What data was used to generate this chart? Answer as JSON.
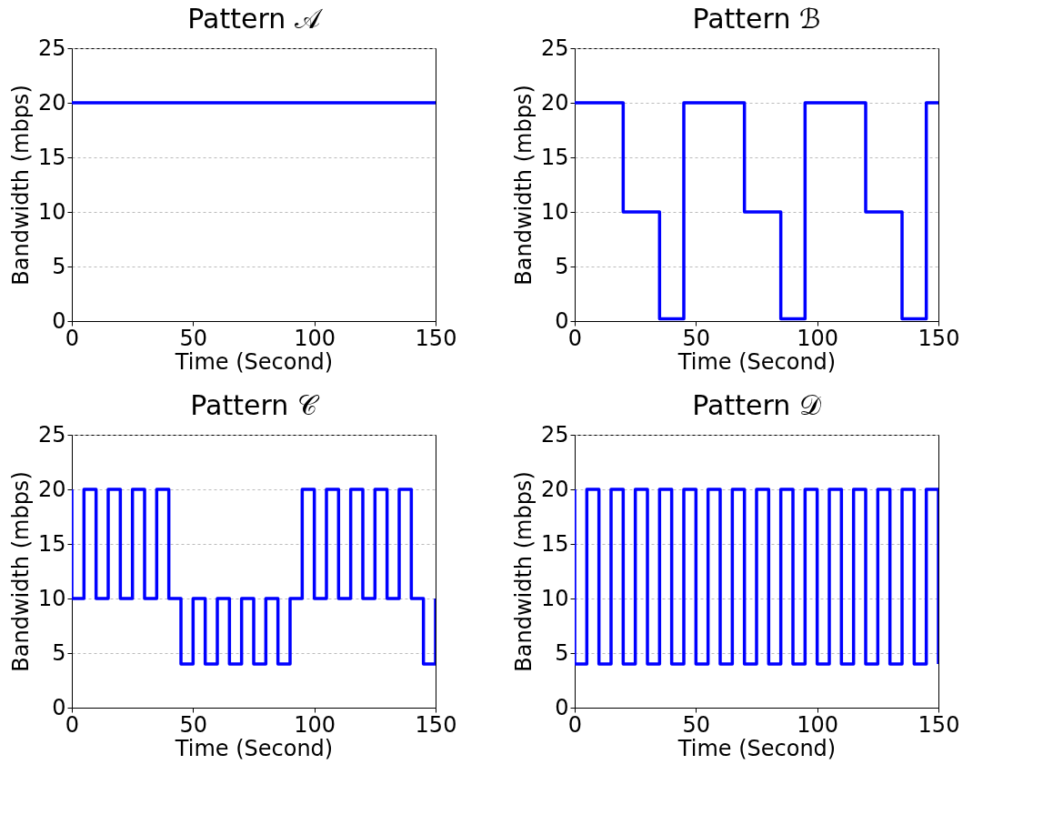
{
  "chart_data": [
    {
      "type": "step",
      "title": "Pattern 𝒜",
      "xlabel": "Time (Second)",
      "ylabel": "Bandwidth (mbps)",
      "xlim": [
        0,
        150
      ],
      "ylim": [
        0,
        25
      ],
      "xticks": [
        0,
        50,
        100,
        150
      ],
      "yticks": [
        0,
        5,
        10,
        15,
        20,
        25
      ],
      "grid": "y",
      "series": [
        {
          "color": "#0000ff",
          "x": [
            0,
            150
          ],
          "values": [
            20,
            20
          ]
        }
      ]
    },
    {
      "type": "step",
      "title": "Pattern ℬ",
      "xlabel": "Time (Second)",
      "ylabel": "Bandwidth (mbps)",
      "xlim": [
        0,
        150
      ],
      "ylim": [
        0,
        25
      ],
      "xticks": [
        0,
        50,
        100,
        150
      ],
      "yticks": [
        0,
        5,
        10,
        15,
        20,
        25
      ],
      "grid": "y",
      "series": [
        {
          "color": "#0000ff",
          "x": [
            0,
            20,
            35,
            45,
            70,
            85,
            95,
            120,
            135,
            145,
            150
          ],
          "values": [
            20,
            20,
            10,
            0.2,
            20,
            10,
            0.2,
            20,
            10,
            0.2,
            20
          ]
        }
      ]
    },
    {
      "type": "step",
      "title": "Pattern 𝒞",
      "xlabel": "Time (Second)",
      "ylabel": "Bandwidth (mbps)",
      "xlim": [
        0,
        150
      ],
      "ylim": [
        0,
        25
      ],
      "xticks": [
        0,
        50,
        100,
        150
      ],
      "yticks": [
        0,
        5,
        10,
        15,
        20,
        25
      ],
      "grid": "y",
      "series": [
        {
          "color": "#0000ff",
          "x": [
            0,
            5,
            10,
            15,
            20,
            25,
            30,
            35,
            40,
            45,
            50,
            55,
            60,
            65,
            70,
            75,
            80,
            85,
            90,
            95,
            100,
            105,
            110,
            115,
            120,
            125,
            130,
            135,
            140,
            145,
            150,
            150
          ],
          "values": [
            20,
            10,
            20,
            10,
            20,
            10,
            20,
            10,
            20,
            10,
            4,
            10,
            4,
            10,
            4,
            10,
            4,
            10,
            4,
            10,
            20,
            10,
            20,
            10,
            20,
            10,
            20,
            10,
            20,
            10,
            4,
            10
          ]
        }
      ]
    },
    {
      "type": "step",
      "title": "Pattern 𝒟",
      "xlabel": "Time (Second)",
      "ylabel": "Bandwidth (mbps)",
      "xlim": [
        0,
        150
      ],
      "ylim": [
        0,
        25
      ],
      "xticks": [
        0,
        50,
        100,
        150
      ],
      "yticks": [
        0,
        5,
        10,
        15,
        20,
        25
      ],
      "grid": "y",
      "series": [
        {
          "color": "#0000ff",
          "x": [
            0,
            5,
            10,
            15,
            20,
            25,
            30,
            35,
            40,
            45,
            50,
            55,
            60,
            65,
            70,
            75,
            80,
            85,
            90,
            95,
            100,
            105,
            110,
            115,
            120,
            125,
            130,
            135,
            140,
            145,
            150,
            150
          ],
          "values": [
            20,
            4,
            20,
            4,
            20,
            4,
            20,
            4,
            20,
            4,
            20,
            4,
            20,
            4,
            20,
            4,
            20,
            4,
            20,
            4,
            20,
            4,
            20,
            4,
            20,
            4,
            20,
            4,
            20,
            4,
            20,
            4
          ]
        }
      ]
    }
  ]
}
